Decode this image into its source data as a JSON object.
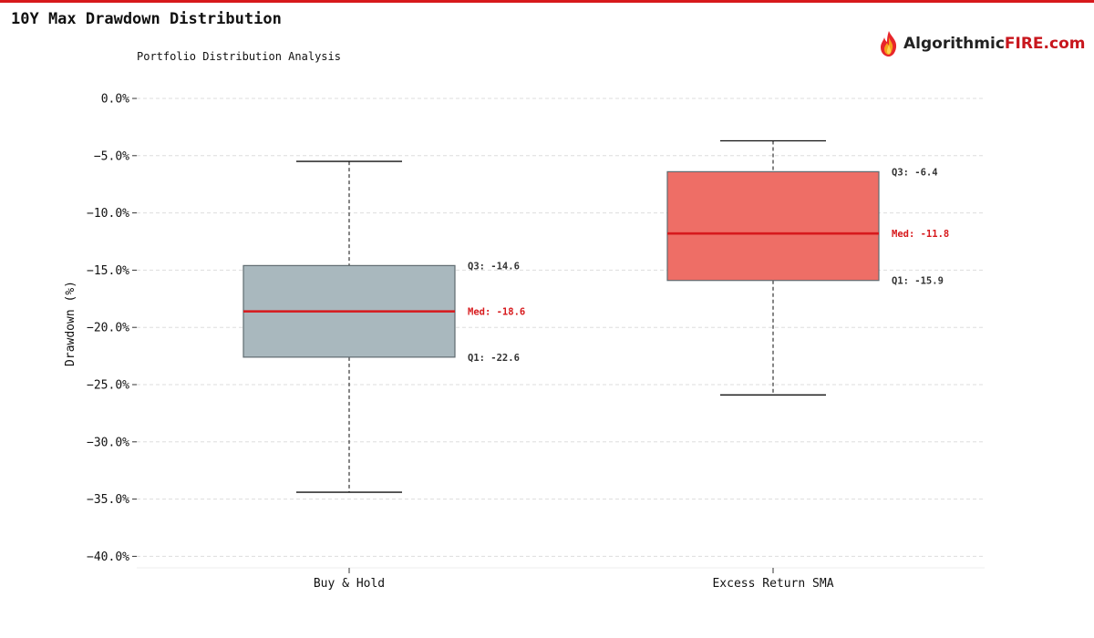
{
  "header": {
    "title": "10Y Max Drawdown Distribution",
    "subtitle": "Portfolio Distribution Analysis",
    "logo_text_dark": "Algorithmic",
    "logo_text_red": "FIRE.com"
  },
  "colors": {
    "accent": "#d7191c",
    "box_buy_hold": "#a9b8be",
    "box_sma": "#ee6e66",
    "median": "#d7191c",
    "grid": "#dddddd"
  },
  "chart_data": {
    "type": "box",
    "title": "10Y Max Drawdown Distribution",
    "subtitle": "Portfolio Distribution Analysis",
    "ylabel": "Drawdown (%)",
    "xlabel": "",
    "ylim": [
      -41,
      0.5
    ],
    "yticks": [
      0,
      -5,
      -10,
      -15,
      -20,
      -25,
      -30,
      -35,
      -40
    ],
    "ytick_labels": [
      "0.0%",
      "−5.0%",
      "−10.0%",
      "−15.0%",
      "−20.0%",
      "−25.0%",
      "−30.0%",
      "−35.0%",
      "−40.0%"
    ],
    "grid": true,
    "categories": [
      "Buy & Hold",
      "Excess Return SMA"
    ],
    "series": [
      {
        "category": "Buy & Hold",
        "whisker_high": -5.5,
        "q3": -14.6,
        "median": -18.6,
        "q1": -22.6,
        "whisker_low": -34.4,
        "color": "#a9b8be",
        "q3_label": "Q3: -14.6",
        "median_label": "Med: -18.6",
        "q1_label": "Q1: -22.6"
      },
      {
        "category": "Excess Return SMA",
        "whisker_high": -3.7,
        "q3": -6.4,
        "median": -11.8,
        "q1": -15.9,
        "whisker_low": -25.9,
        "color": "#ee6e66",
        "q3_label": "Q3: -6.4",
        "median_label": "Med: -11.8",
        "q1_label": "Q1: -15.9"
      }
    ]
  }
}
